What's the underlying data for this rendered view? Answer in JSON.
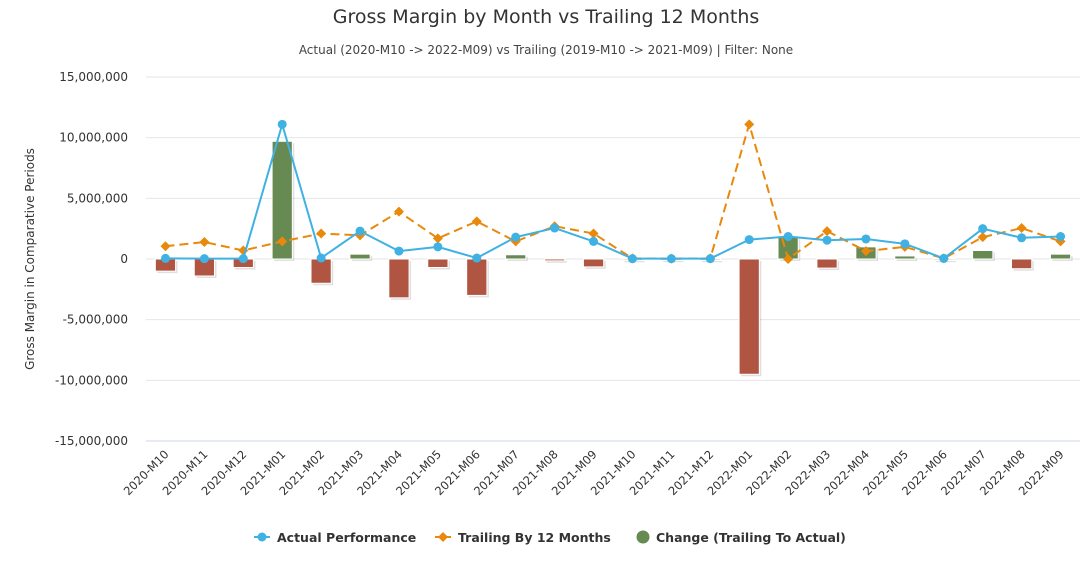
{
  "chart_data": {
    "type": "bar+line",
    "title": "Gross Margin by Month vs Trailing 12 Months",
    "subtitle": "Actual (2020-M10 -> 2022-M09) vs Trailing (2019-M10 -> 2021-M09) | Filter: None",
    "ylabel": "Gross Margin in Comparative Periods",
    "xlabel": "",
    "ylim": [
      -15000000,
      15000000
    ],
    "yticks": [
      15000000,
      10000000,
      5000000,
      0,
      -5000000,
      -10000000,
      -15000000
    ],
    "ytick_labels": [
      "15,000,000",
      "10,000,000",
      "5,000,000",
      "0",
      "-5,000,000",
      "-10,000,000",
      "-15,000,000"
    ],
    "grid": true,
    "legend_position": "bottom",
    "categories": [
      "2020-M10",
      "2020-M11",
      "2020-M12",
      "2021-M01",
      "2021-M02",
      "2021-M03",
      "2021-M04",
      "2021-M05",
      "2021-M06",
      "2021-M07",
      "2021-M08",
      "2021-M09",
      "2021-M10",
      "2021-M11",
      "2021-M12",
      "2022-M01",
      "2022-M02",
      "2022-M03",
      "2022-M04",
      "2022-M05",
      "2022-M06",
      "2022-M07",
      "2022-M08",
      "2022-M09"
    ],
    "series": [
      {
        "name": "Actual Performance",
        "kind": "line",
        "color": "#3fb1e3",
        "marker": "circle",
        "values": [
          50000,
          30000,
          30000,
          11100000,
          80000,
          2300000,
          650000,
          1000000,
          80000,
          1800000,
          2550000,
          1450000,
          30000,
          30000,
          30000,
          1600000,
          1850000,
          1550000,
          1650000,
          1250000,
          50000,
          2500000,
          1750000,
          1850000
        ]
      },
      {
        "name": "Trailing By 12 Months",
        "kind": "line",
        "dash": true,
        "color": "#e8890c",
        "marker": "diamond",
        "values": [
          1050000,
          1400000,
          700000,
          1450000,
          2100000,
          1950000,
          3900000,
          1700000,
          3100000,
          1450000,
          2700000,
          2100000,
          50000,
          30000,
          50000,
          11100000,
          0,
          2300000,
          650000,
          1000000,
          50000,
          1800000,
          2550000,
          1450000
        ]
      },
      {
        "name": "Change (Trailing To Actual)",
        "kind": "bar",
        "positive_color": "#668a52",
        "negative_color": "#b05541",
        "values": [
          -1000000,
          -1400000,
          -700000,
          9700000,
          -2000000,
          400000,
          -3200000,
          -700000,
          -3000000,
          350000,
          -150000,
          -650000,
          -20000,
          0,
          -20000,
          -9500000,
          1850000,
          -750000,
          1000000,
          250000,
          0,
          700000,
          -800000,
          400000
        ]
      }
    ]
  }
}
